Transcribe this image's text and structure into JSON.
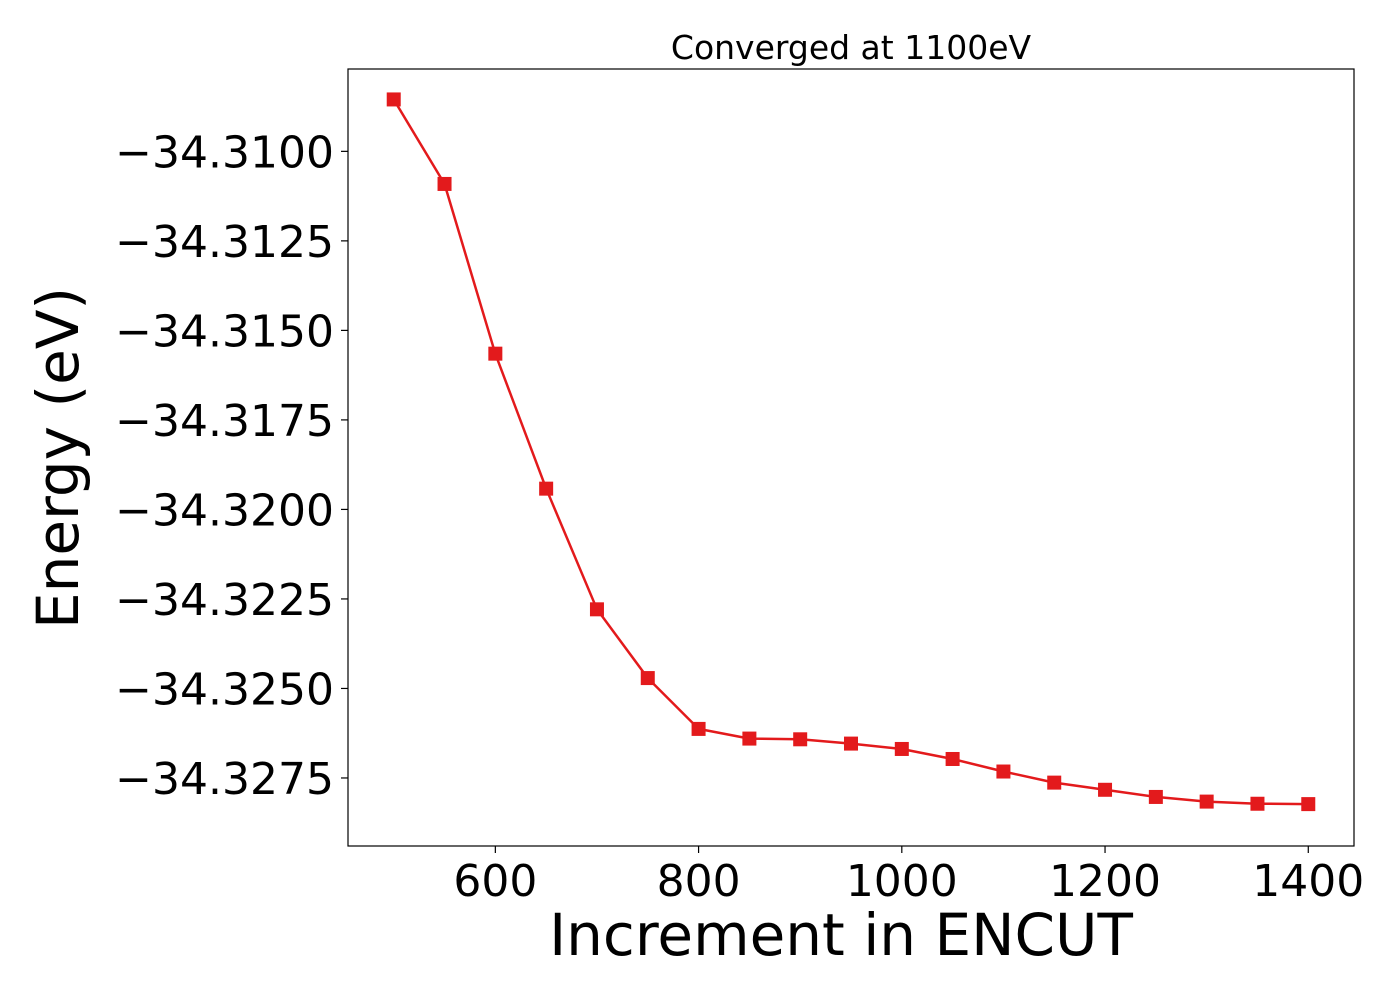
{
  "chart_data": {
    "type": "line",
    "title": "Converged at 1100eV",
    "xlabel": "Increment in ENCUT",
    "ylabel": "Energy (eV)",
    "xlim": [
      455,
      1445
    ],
    "ylim": [
      -34.3294,
      -34.3077
    ],
    "xticks": [
      600,
      800,
      1000,
      1200,
      1400
    ],
    "xtick_labels": [
      "600",
      "800",
      "1000",
      "1200",
      "1400"
    ],
    "yticks": [
      -34.31,
      -34.3125,
      -34.315,
      -34.3175,
      -34.32,
      -34.3225,
      -34.325,
      -34.3275
    ],
    "ytick_labels": [
      "−34.3100",
      "−34.3125",
      "−34.3150",
      "−34.3175",
      "−34.3200",
      "−34.3225",
      "−34.3250",
      "−34.3275"
    ],
    "grid": false,
    "series": [
      {
        "color": "#e31a1c",
        "marker": "square",
        "x": [
          500,
          550,
          600,
          650,
          700,
          750,
          800,
          850,
          900,
          950,
          1000,
          1050,
          1100,
          1150,
          1200,
          1250,
          1300,
          1350,
          1400
        ],
        "y": [
          -34.30855,
          -34.31091,
          -34.31565,
          -34.31942,
          -34.32279,
          -34.32471,
          -34.32613,
          -34.3264,
          -34.32642,
          -34.32654,
          -34.32669,
          -34.32697,
          -34.32732,
          -34.32763,
          -34.32783,
          -34.32803,
          -34.32816,
          -34.32822,
          -34.32823
        ]
      }
    ]
  }
}
